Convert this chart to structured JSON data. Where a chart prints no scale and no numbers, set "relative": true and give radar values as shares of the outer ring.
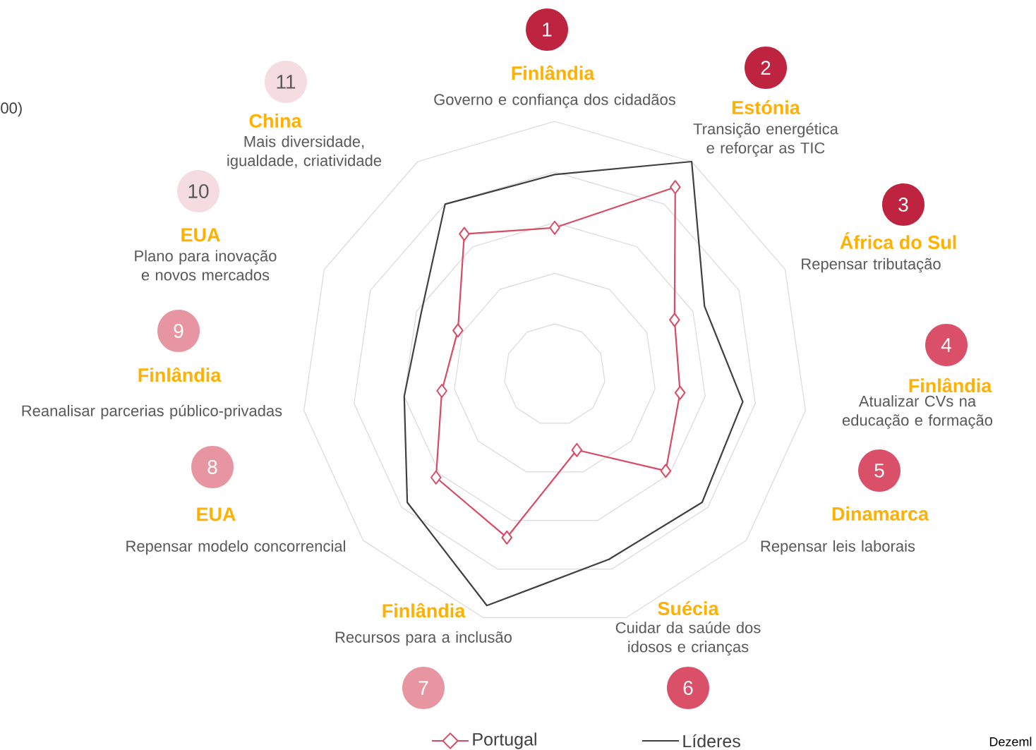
{
  "chart_data": {
    "type": "radar",
    "relative": true,
    "grid": true,
    "legend": "bottom",
    "categories": [
      "Governo e confiança dos cidadãos",
      "Transição energética e reforçar as TIC",
      "Repensar tributação",
      "Atualizar CVs na educação e formação",
      "Repensar leis laborais",
      "Cuidar da saúde dos idosos e crianças",
      "Recursos para a inclusão",
      "Repensar modelo concorrencial",
      "Reanalisar parcerias público-privadas",
      "Plano para inovação e novos mercados",
      "Mais diversidade, igualdade, criatividade"
    ],
    "series": [
      {
        "name": "Portugal",
        "color": "#d94a64",
        "marker": "diamond",
        "values": [
          0.58,
          0.88,
          0.52,
          0.5,
          0.58,
          0.31,
          0.67,
          0.62,
          0.45,
          0.42,
          0.66
        ]
      },
      {
        "name": "Líderes",
        "color": "#404040",
        "marker": "none",
        "values": [
          0.79,
          1.0,
          0.65,
          0.75,
          0.77,
          0.76,
          0.95,
          0.77,
          0.6,
          0.58,
          0.8
        ]
      }
    ],
    "annotations": [
      "1",
      "2",
      "3",
      "4",
      "5",
      "6",
      "7",
      "8",
      "9",
      "10",
      "11",
      "Finlândia",
      "Estónia",
      "África do Sul",
      "Finlândia",
      "Dinamarca",
      "Suécia",
      "Finlândia",
      "EUA",
      "Finlândia",
      "EUA",
      "China",
      "00)",
      "Dezeml"
    ]
  }
}
